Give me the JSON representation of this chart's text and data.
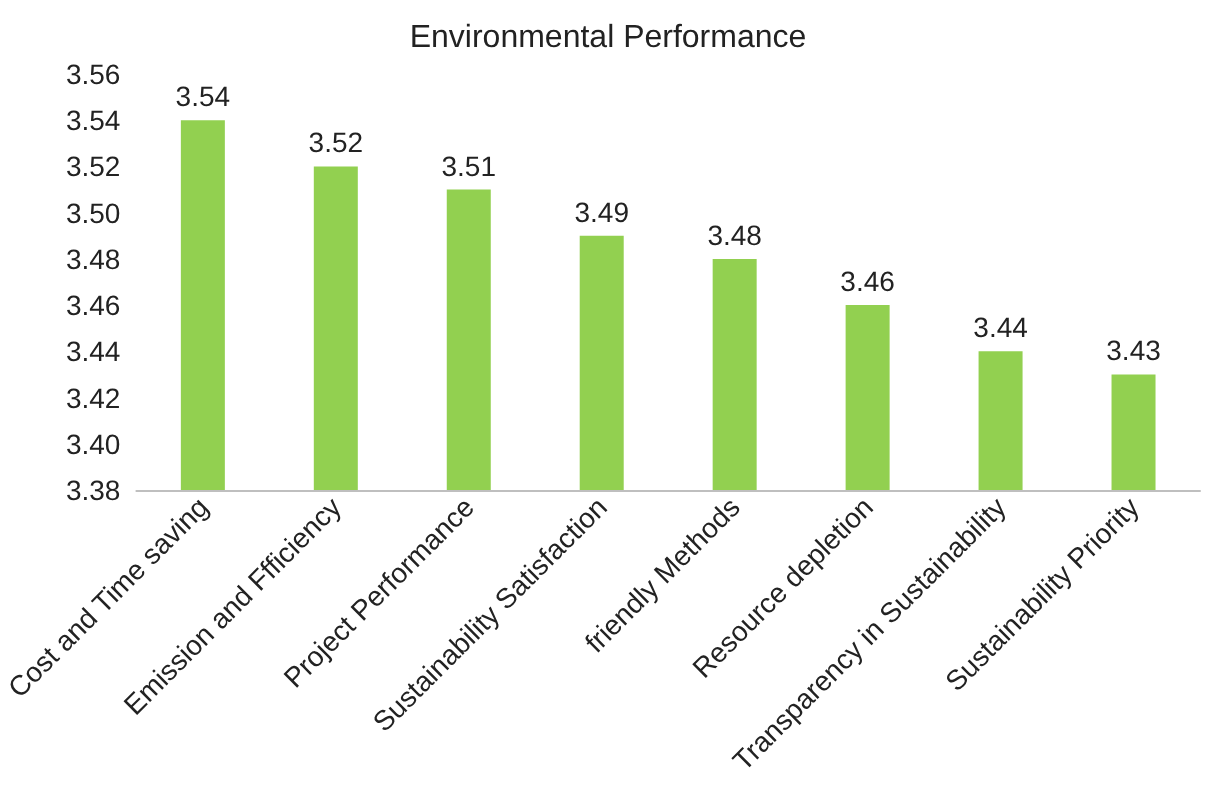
{
  "chart_data": {
    "type": "bar",
    "title": "Environmental Performance",
    "categories": [
      "Cost and Time saving",
      "Emission and Ffficiency",
      "Project Performance",
      "Sustainability Satisfaction",
      "friendly Methods",
      "Resource depletion",
      "Transparency in Sustainability",
      "Sustainability Priority"
    ],
    "values": [
      3.54,
      3.52,
      3.51,
      3.49,
      3.48,
      3.46,
      3.44,
      3.43
    ],
    "color": "#92d050",
    "ylim": [
      3.38,
      3.56
    ],
    "yticks": [
      {
        "value": 3.38,
        "label": "3.38"
      },
      {
        "value": 3.4,
        "label": "3.40"
      },
      {
        "value": 3.42,
        "label": "3.42"
      },
      {
        "value": 3.44,
        "label": "3.44"
      },
      {
        "value": 3.46,
        "label": "3.46"
      },
      {
        "value": 3.48,
        "label": "3.48"
      },
      {
        "value": 3.5,
        "label": "3.50"
      },
      {
        "value": 3.52,
        "label": "3.52"
      },
      {
        "value": 3.54,
        "label": "3.54"
      },
      {
        "value": 3.56,
        "label": "3.56"
      }
    ],
    "data_labels": true
  }
}
